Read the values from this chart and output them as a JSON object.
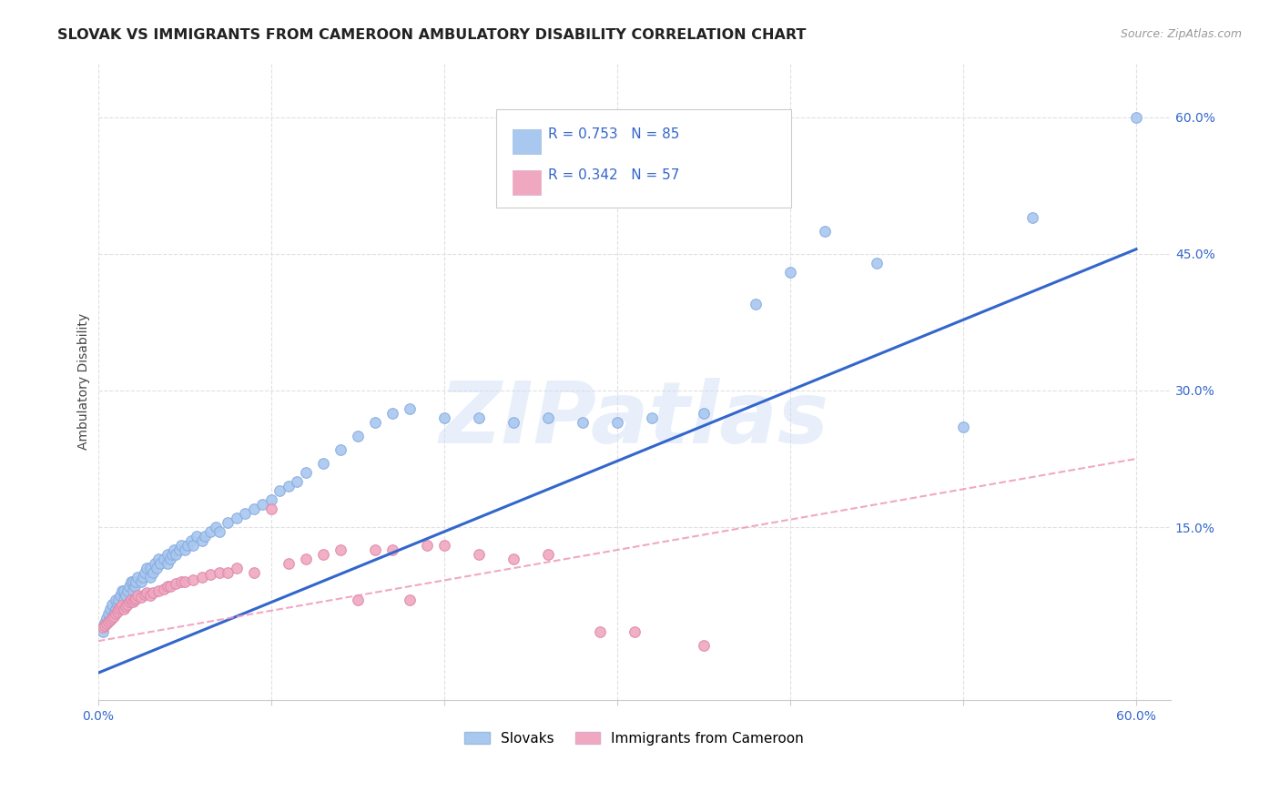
{
  "title": "SLOVAK VS IMMIGRANTS FROM CAMEROON AMBULATORY DISABILITY CORRELATION CHART",
  "source": "Source: ZipAtlas.com",
  "ylabel": "Ambulatory Disability",
  "xlim": [
    0.0,
    0.62
  ],
  "ylim": [
    -0.04,
    0.66
  ],
  "ytick_labels_right": [
    "60.0%",
    "45.0%",
    "30.0%",
    "15.0%"
  ],
  "ytick_positions_right": [
    0.6,
    0.45,
    0.3,
    0.15
  ],
  "background_color": "#ffffff",
  "grid_color": "#e0e0e0",
  "grid_style": "--",
  "slovak_color": "#a8c8f0",
  "cameroon_color": "#f0a8c0",
  "slovak_line_color": "#3366cc",
  "cameroon_line_color": "#ee99bb",
  "R_slovak": 0.753,
  "N_slovak": 85,
  "R_cameroon": 0.342,
  "N_cameroon": 57,
  "watermark_text": "ZIPatlas",
  "legend_label_slovak": "Slovaks",
  "legend_label_cameroon": "Immigrants from Cameroon",
  "slovak_line_start_y": -0.01,
  "slovak_line_end_y": 0.455,
  "cameroon_line_start_y": 0.025,
  "cameroon_line_end_y": 0.225,
  "slovak_scatter_x": [
    0.003,
    0.004,
    0.005,
    0.006,
    0.007,
    0.008,
    0.009,
    0.01,
    0.01,
    0.011,
    0.012,
    0.013,
    0.014,
    0.015,
    0.015,
    0.016,
    0.017,
    0.018,
    0.019,
    0.02,
    0.02,
    0.021,
    0.022,
    0.023,
    0.025,
    0.026,
    0.027,
    0.028,
    0.03,
    0.03,
    0.032,
    0.033,
    0.034,
    0.035,
    0.036,
    0.038,
    0.04,
    0.04,
    0.042,
    0.043,
    0.044,
    0.045,
    0.047,
    0.048,
    0.05,
    0.052,
    0.054,
    0.055,
    0.057,
    0.06,
    0.062,
    0.065,
    0.068,
    0.07,
    0.075,
    0.08,
    0.085,
    0.09,
    0.095,
    0.1,
    0.105,
    0.11,
    0.115,
    0.12,
    0.13,
    0.14,
    0.15,
    0.16,
    0.17,
    0.18,
    0.2,
    0.22,
    0.24,
    0.26,
    0.28,
    0.3,
    0.32,
    0.35,
    0.38,
    0.4,
    0.42,
    0.45,
    0.5,
    0.54,
    0.6
  ],
  "slovak_scatter_y": [
    0.035,
    0.045,
    0.05,
    0.055,
    0.06,
    0.065,
    0.055,
    0.06,
    0.07,
    0.065,
    0.07,
    0.075,
    0.08,
    0.07,
    0.08,
    0.075,
    0.08,
    0.085,
    0.09,
    0.08,
    0.09,
    0.085,
    0.09,
    0.095,
    0.09,
    0.095,
    0.1,
    0.105,
    0.095,
    0.105,
    0.1,
    0.11,
    0.105,
    0.115,
    0.11,
    0.115,
    0.11,
    0.12,
    0.115,
    0.12,
    0.125,
    0.12,
    0.125,
    0.13,
    0.125,
    0.13,
    0.135,
    0.13,
    0.14,
    0.135,
    0.14,
    0.145,
    0.15,
    0.145,
    0.155,
    0.16,
    0.165,
    0.17,
    0.175,
    0.18,
    0.19,
    0.195,
    0.2,
    0.21,
    0.22,
    0.235,
    0.25,
    0.265,
    0.275,
    0.28,
    0.27,
    0.27,
    0.265,
    0.27,
    0.265,
    0.265,
    0.27,
    0.275,
    0.395,
    0.43,
    0.475,
    0.44,
    0.26,
    0.49,
    0.6
  ],
  "cameroon_scatter_x": [
    0.003,
    0.004,
    0.005,
    0.006,
    0.007,
    0.008,
    0.009,
    0.01,
    0.011,
    0.012,
    0.013,
    0.014,
    0.015,
    0.016,
    0.017,
    0.018,
    0.019,
    0.02,
    0.021,
    0.022,
    0.023,
    0.025,
    0.027,
    0.028,
    0.03,
    0.032,
    0.035,
    0.038,
    0.04,
    0.042,
    0.045,
    0.048,
    0.05,
    0.055,
    0.06,
    0.065,
    0.07,
    0.075,
    0.08,
    0.09,
    0.1,
    0.11,
    0.12,
    0.13,
    0.14,
    0.15,
    0.16,
    0.17,
    0.18,
    0.19,
    0.2,
    0.22,
    0.24,
    0.26,
    0.29,
    0.31,
    0.35
  ],
  "cameroon_scatter_y": [
    0.04,
    0.042,
    0.044,
    0.046,
    0.048,
    0.05,
    0.052,
    0.055,
    0.057,
    0.06,
    0.062,
    0.064,
    0.06,
    0.063,
    0.065,
    0.068,
    0.07,
    0.068,
    0.07,
    0.072,
    0.075,
    0.073,
    0.076,
    0.078,
    0.075,
    0.078,
    0.08,
    0.082,
    0.085,
    0.085,
    0.088,
    0.09,
    0.09,
    0.092,
    0.095,
    0.098,
    0.1,
    0.1,
    0.105,
    0.1,
    0.17,
    0.11,
    0.115,
    0.12,
    0.125,
    0.07,
    0.125,
    0.125,
    0.07,
    0.13,
    0.13,
    0.12,
    0.115,
    0.12,
    0.035,
    0.035,
    0.02
  ]
}
